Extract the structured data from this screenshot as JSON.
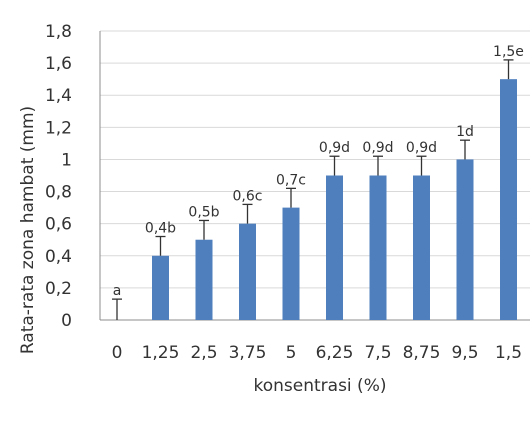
{
  "chart_data": {
    "type": "bar",
    "title": "",
    "xlabel": "konsentrasi (%)",
    "ylabel": "Rata-rata zona hambat (mm)",
    "ylim": [
      0,
      1.8
    ],
    "yticks": [
      "0",
      "0,2",
      "0,4",
      "0,6",
      "0,8",
      "1",
      "1,2",
      "1,4",
      "1,6",
      "1,8"
    ],
    "grid": true,
    "legend": "none",
    "categories": [
      "0",
      "1,25",
      "2,5",
      "3,75",
      "5",
      "6,25",
      "7,5",
      "8,75",
      "9,5",
      "1,5"
    ],
    "values": [
      0,
      0.4,
      0.5,
      0.6,
      0.7,
      0.9,
      0.9,
      0.9,
      1.0,
      1.5
    ],
    "error": [
      0.13,
      0.12,
      0.12,
      0.12,
      0.12,
      0.12,
      0.12,
      0.12,
      0.12,
      0.12
    ],
    "data_labels": [
      "a",
      "0,4b",
      "0,5b",
      "0,6c",
      "0,7c",
      "0,9d",
      "0,9d",
      "0,9d",
      "1d",
      "1,5e"
    ],
    "colors": {
      "bar": "#4f7fbd",
      "grid": "#d9d9d9",
      "axis": "#8c8c8c",
      "error": "#333333"
    }
  }
}
